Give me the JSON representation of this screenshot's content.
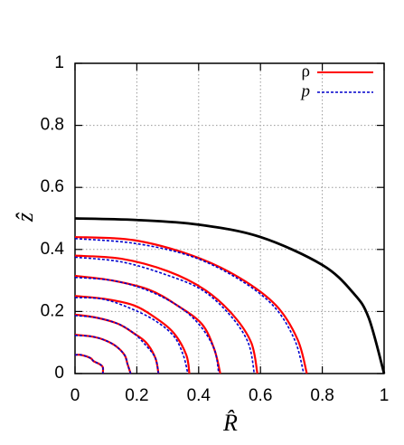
{
  "chart_data": {
    "type": "line",
    "xlabel": "R̂",
    "ylabel": "ẑ",
    "xlim": [
      0,
      1
    ],
    "ylim": [
      0,
      1
    ],
    "xticks": [
      0,
      0.2,
      0.4,
      0.6,
      0.8,
      1
    ],
    "yticks": [
      0,
      0.2,
      0.4,
      0.6,
      0.8,
      1
    ],
    "grid": true,
    "legend": "top-right",
    "boundary": {
      "color": "#000000",
      "x": [
        0,
        0.2,
        0.4,
        0.6,
        0.8,
        0.9,
        0.95,
        1
      ],
      "y": [
        0.5,
        0.495,
        0.48,
        0.44,
        0.35,
        0.26,
        0.18,
        0
      ]
    },
    "series": [
      {
        "name": "ρ",
        "color": "#ff0000",
        "line_style": "solid",
        "curves": [
          {
            "x": [
              0,
              0.19,
              0.38,
              0.53,
              0.65,
              0.72,
              0.75
            ],
            "y": [
              0.44,
              0.43,
              0.38,
              0.31,
              0.22,
              0.11,
              0
            ]
          },
          {
            "x": [
              0,
              0.15,
              0.3,
              0.42,
              0.51,
              0.57,
              0.59
            ],
            "y": [
              0.38,
              0.37,
              0.33,
              0.27,
              0.19,
              0.1,
              0
            ]
          },
          {
            "x": [
              0,
              0.12,
              0.24,
              0.33,
              0.41,
              0.45,
              0.47
            ],
            "y": [
              0.315,
              0.3,
              0.27,
              0.22,
              0.16,
              0.08,
              0
            ]
          },
          {
            "x": [
              0,
              0.1,
              0.19,
              0.26,
              0.32,
              0.36,
              0.37
            ],
            "y": [
              0.25,
              0.24,
              0.22,
              0.18,
              0.13,
              0.06,
              0
            ]
          },
          {
            "x": [
              0,
              0.07,
              0.14,
              0.19,
              0.23,
              0.26,
              0.27
            ],
            "y": [
              0.19,
              0.18,
              0.16,
              0.13,
              0.1,
              0.05,
              0
            ]
          },
          {
            "x": [
              0,
              0.05,
              0.09,
              0.13,
              0.16,
              0.17,
              0.18
            ],
            "y": [
              0.125,
              0.12,
              0.11,
              0.09,
              0.06,
              0.03,
              0
            ]
          },
          {
            "x": [
              0,
              0.02,
              0.05,
              0.06,
              0.08,
              0.09,
              0.09
            ],
            "y": [
              0.06,
              0.06,
              0.05,
              0.04,
              0.03,
              0.02,
              0
            ]
          }
        ]
      },
      {
        "name": "p",
        "color": "#0000cc",
        "line_style": "dashed",
        "curves": [
          {
            "x": [
              0,
              0.19,
              0.37,
              0.52,
              0.64,
              0.71,
              0.74
            ],
            "y": [
              0.435,
              0.42,
              0.38,
              0.31,
              0.22,
              0.11,
              0
            ]
          },
          {
            "x": [
              0,
              0.15,
              0.29,
              0.41,
              0.5,
              0.56,
              0.58
            ],
            "y": [
              0.375,
              0.36,
              0.32,
              0.27,
              0.19,
              0.1,
              0
            ]
          },
          {
            "x": [
              0,
              0.12,
              0.23,
              0.33,
              0.4,
              0.45,
              0.465
            ],
            "y": [
              0.31,
              0.3,
              0.27,
              0.22,
              0.16,
              0.08,
              0
            ]
          },
          {
            "x": [
              0,
              0.09,
              0.18,
              0.26,
              0.32,
              0.35,
              0.365
            ],
            "y": [
              0.245,
              0.24,
              0.21,
              0.17,
              0.12,
              0.06,
              0
            ]
          },
          {
            "x": [
              0,
              0.07,
              0.14,
              0.19,
              0.23,
              0.26,
              0.27
            ],
            "y": [
              0.187,
              0.18,
              0.16,
              0.13,
              0.09,
              0.05,
              0
            ]
          },
          {
            "x": [
              0,
              0.05,
              0.09,
              0.13,
              0.16,
              0.17,
              0.18
            ],
            "y": [
              0.123,
              0.12,
              0.11,
              0.09,
              0.06,
              0.03,
              0
            ]
          },
          {
            "x": [
              0,
              0.02,
              0.05,
              0.06,
              0.08,
              0.09,
              0.09
            ],
            "y": [
              0.06,
              0.06,
              0.05,
              0.04,
              0.03,
              0.02,
              0
            ]
          }
        ]
      }
    ]
  }
}
